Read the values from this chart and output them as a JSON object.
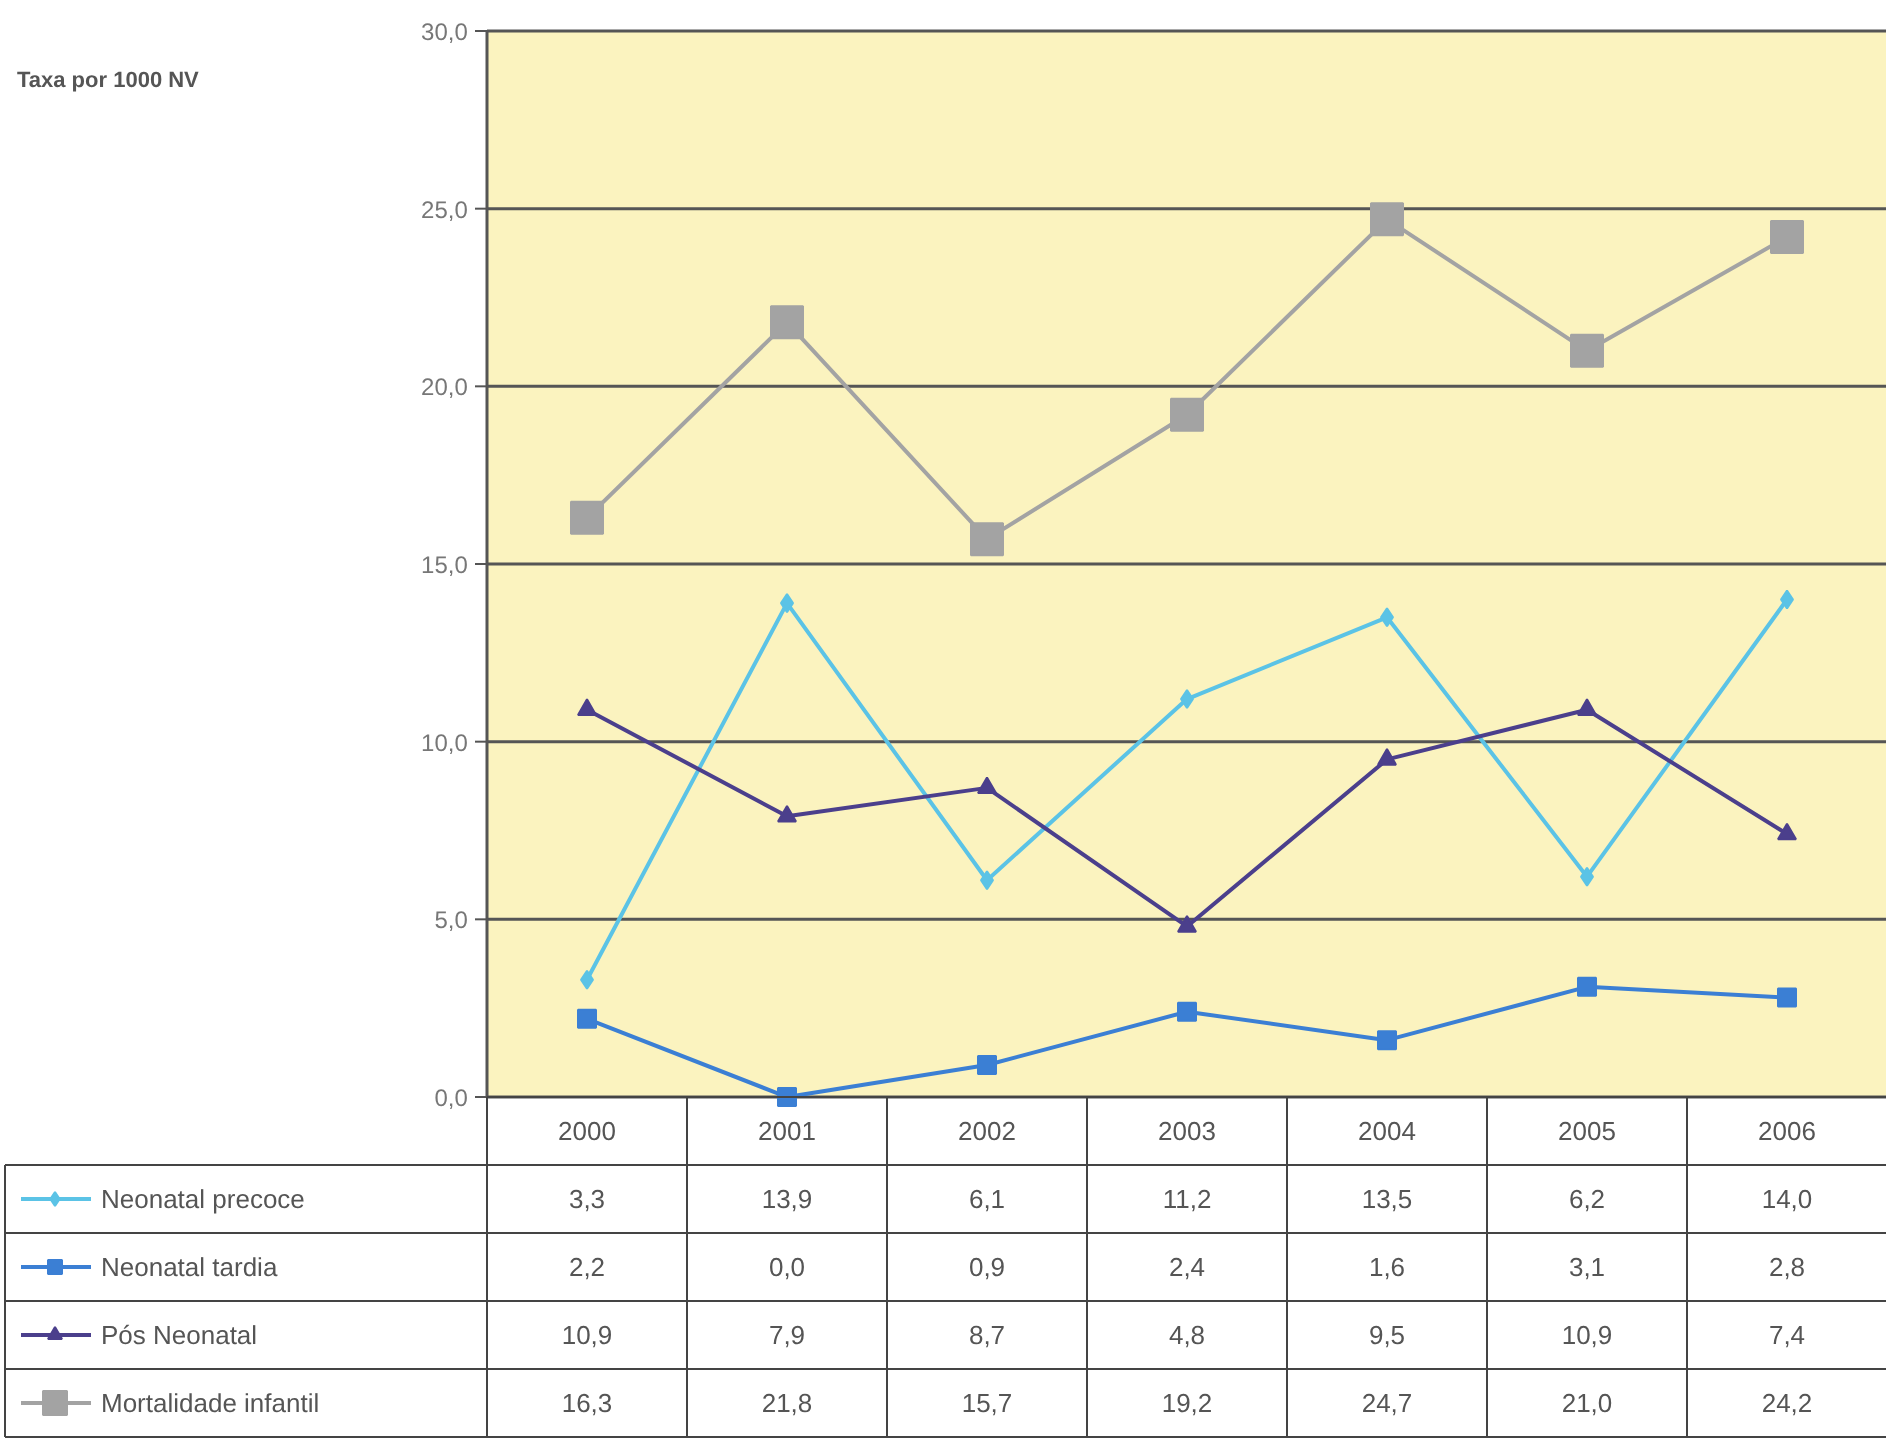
{
  "chart_data": {
    "type": "line",
    "annotations": [
      "Taxa por 1000 NV"
    ],
    "categories": [
      "2000",
      "2001",
      "2002",
      "2003",
      "2004",
      "2005",
      "2006"
    ],
    "series": [
      {
        "name": "Neonatal precoce",
        "color": "#5bc3e6",
        "marker": "diamond",
        "values": [
          3.3,
          13.9,
          6.1,
          11.2,
          13.5,
          6.2,
          14.0
        ],
        "value_labels": [
          "3,3",
          "13,9",
          "6,1",
          "11,2",
          "13,5",
          "6,2",
          "14,0"
        ]
      },
      {
        "name": "Neonatal tardia",
        "color": "#3b7fd4",
        "marker": "square",
        "values": [
          2.2,
          0.0,
          0.9,
          2.4,
          1.6,
          3.1,
          2.8
        ],
        "value_labels": [
          "2,2",
          "0,0",
          "0,9",
          "2,4",
          "1,6",
          "3,1",
          "2,8"
        ]
      },
      {
        "name": "Pós Neonatal",
        "color": "#4b3f8c",
        "marker": "triangle",
        "values": [
          10.9,
          7.9,
          8.7,
          4.8,
          9.5,
          10.9,
          7.4
        ],
        "value_labels": [
          "10,9",
          "7,9",
          "8,7",
          "4,8",
          "9,5",
          "10,9",
          "7,4"
        ]
      },
      {
        "name": "Mortalidade infantil",
        "color": "#a3a3a3",
        "marker": "square",
        "values": [
          16.3,
          21.8,
          15.7,
          19.2,
          24.7,
          21.0,
          24.2
        ],
        "value_labels": [
          "16,3",
          "21,8",
          "15,7",
          "19,2",
          "24,7",
          "21,0",
          "24,2"
        ]
      }
    ],
    "ylim": [
      0,
      30
    ],
    "yticks": [
      {
        "value": 0,
        "label": "0,0"
      },
      {
        "value": 5,
        "label": "5,0"
      },
      {
        "value": 10,
        "label": "10,0"
      },
      {
        "value": 15,
        "label": "15,0"
      },
      {
        "value": 20,
        "label": "20,0"
      },
      {
        "value": 25,
        "label": "25,0"
      },
      {
        "value": 30,
        "label": "30,0"
      }
    ],
    "grid": "y",
    "legend": "bottom"
  }
}
